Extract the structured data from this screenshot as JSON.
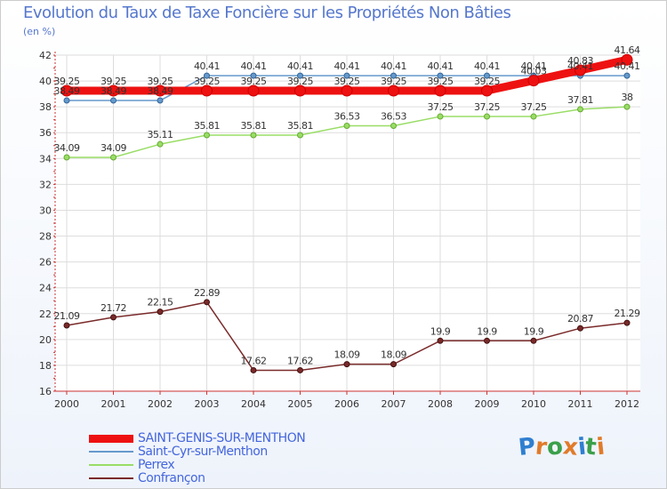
{
  "header": {
    "title": "Evolution du Taux de Taxe Foncière sur les Propriétés Non Bâties",
    "unit": "(en %)"
  },
  "logo": {
    "letters": [
      "P",
      "r",
      "o",
      "x",
      "i",
      "t",
      "i"
    ],
    "colors": [
      "#2f7fd0",
      "#e07b2a",
      "#3aa04a",
      "#e07b2a",
      "#2f7fd0",
      "#3aa04a",
      "#e07b2a"
    ]
  },
  "chart_data": {
    "type": "line",
    "title": "Evolution du Taux de Taxe Foncière sur les Propriétés Non Bâties",
    "ylabel": "(en %)",
    "xlabel": "",
    "ylim": [
      16,
      42
    ],
    "yticks": [
      "16",
      "18",
      "20",
      "22",
      "24",
      "26",
      "28",
      "30",
      "32",
      "34",
      "36",
      "38",
      "40",
      "42"
    ],
    "categories": [
      "2000",
      "2001",
      "2002",
      "2003",
      "2004",
      "2005",
      "2006",
      "2007",
      "2008",
      "2009",
      "2010",
      "2011",
      "2012"
    ],
    "grid": true,
    "legend_position": "bottom-left",
    "series": [
      {
        "name": "SAINT-GENIS-SUR-MENTHON",
        "color": "#ee1111",
        "values": [
          39.25,
          39.25,
          39.25,
          39.25,
          39.25,
          39.25,
          39.25,
          39.25,
          39.25,
          39.25,
          40.03,
          40.83,
          41.64
        ],
        "labels": [
          "39.25",
          "39.25",
          "39.25",
          "39.25",
          "39.25",
          "39.25",
          "39.25",
          "39.25",
          "39.25",
          "39.25",
          "40.03",
          "40.83",
          "41.64"
        ]
      },
      {
        "name": "Saint-Cyr-sur-Menthon",
        "color": "#6699cc",
        "values": [
          38.49,
          38.49,
          38.49,
          40.41,
          40.41,
          40.41,
          40.41,
          40.41,
          40.41,
          40.41,
          40.41,
          40.41,
          40.41
        ],
        "labels": [
          "38.49",
          "38.49",
          "38.49",
          "40.41",
          "40.41",
          "40.41",
          "40.41",
          "40.41",
          "40.41",
          "40.41",
          "40.41",
          "40.41",
          "40.41"
        ]
      },
      {
        "name": "Perrex",
        "color": "#99dd66",
        "values": [
          34.09,
          34.09,
          35.11,
          35.81,
          35.81,
          35.81,
          36.53,
          36.53,
          37.25,
          37.25,
          37.25,
          37.81,
          38
        ],
        "labels": [
          "34.09",
          "34.09",
          "35.11",
          "35.81",
          "35.81",
          "35.81",
          "36.53",
          "36.53",
          "37.25",
          "37.25",
          "37.25",
          "37.81",
          "38"
        ]
      },
      {
        "name": "Confrançon",
        "color": "#7a2a2a",
        "values": [
          21.09,
          21.72,
          22.15,
          22.89,
          17.62,
          17.62,
          18.09,
          18.09,
          19.9,
          19.9,
          19.9,
          20.87,
          21.29
        ],
        "labels": [
          "21.09",
          "21.72",
          "22.15",
          "22.89",
          "17.62",
          "17.62",
          "18.09",
          "18.09",
          "19.9",
          "19.9",
          "19.9",
          "20.87",
          "21.29"
        ]
      }
    ]
  }
}
